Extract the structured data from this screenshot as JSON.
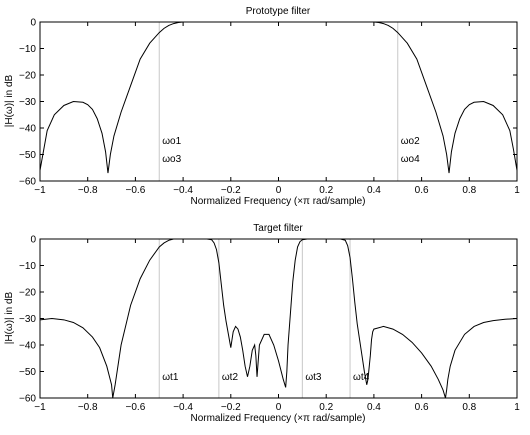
{
  "chart_data": [
    {
      "type": "line",
      "title": "Prototype filter",
      "xlabel": "Normalized Frequency  (×π rad/sample)",
      "ylabel": "|H(ω)| in dB",
      "xlim": [
        -1,
        1
      ],
      "ylim": [
        -60,
        0
      ],
      "xticks": [
        -1,
        -0.8,
        -0.6,
        -0.4,
        -0.2,
        0,
        0.2,
        0.4,
        0.6,
        0.8,
        1
      ],
      "xtick_labels": [
        "−1",
        "−0.8",
        "−0.6",
        "−0.4",
        "−0.2",
        "0",
        "0.2",
        "0.4",
        "0.6",
        "0.8",
        "1"
      ],
      "yticks": [
        0,
        -10,
        -20,
        -30,
        -40,
        -50,
        -60
      ],
      "ytick_labels": [
        "0",
        "−10",
        "−20",
        "−30",
        "−40",
        "−50",
        "−60"
      ],
      "grid": false,
      "series": [
        {
          "color": "#000000",
          "x": [
            -1.0,
            -0.97,
            -0.94,
            -0.9,
            -0.86,
            -0.82,
            -0.8,
            -0.78,
            -0.76,
            -0.74,
            -0.725,
            -0.715,
            -0.705,
            -0.69,
            -0.66,
            -0.62,
            -0.58,
            -0.54,
            -0.5,
            -0.48,
            -0.46,
            -0.44,
            -0.42,
            -0.4,
            -0.36,
            0.36,
            0.4,
            0.42,
            0.44,
            0.46,
            0.48,
            0.5,
            0.54,
            0.58,
            0.62,
            0.66,
            0.69,
            0.705,
            0.715,
            0.725,
            0.74,
            0.76,
            0.78,
            0.8,
            0.82,
            0.86,
            0.9,
            0.94,
            0.97,
            0.985,
            1.0
          ],
          "y": [
            -56,
            -41,
            -35,
            -31.5,
            -30,
            -30.3,
            -31.2,
            -33,
            -36.5,
            -42,
            -49,
            -57,
            -50,
            -43,
            -34,
            -24,
            -14,
            -8,
            -4,
            -2.4,
            -1.3,
            -0.6,
            -0.2,
            0,
            0,
            0,
            0,
            -0.2,
            -0.6,
            -1.3,
            -2.4,
            -4,
            -8,
            -14,
            -24,
            -34,
            -43,
            -50,
            -57,
            -49,
            -42,
            -36.5,
            -33,
            -31.2,
            -30.3,
            -30,
            -31.5,
            -35,
            -41,
            -48,
            -56
          ]
        }
      ],
      "markers": [
        {
          "x": -0.5,
          "labels": [
            "ωo1",
            "ωo3"
          ]
        },
        {
          "x": 0.5,
          "labels": [
            "ωo2",
            "ωo4"
          ]
        }
      ]
    },
    {
      "type": "line",
      "title": "Target filter",
      "xlabel": "Normalized Frequency  (×π rad/sample)",
      "ylabel": "|H(ω)| in dB",
      "xlim": [
        -1,
        1
      ],
      "ylim": [
        -60,
        0
      ],
      "xticks": [
        -1,
        -0.8,
        -0.6,
        -0.4,
        -0.2,
        0,
        0.2,
        0.4,
        0.6,
        0.8,
        1
      ],
      "xtick_labels": [
        "−1",
        "−0.8",
        "−0.6",
        "−0.4",
        "−0.2",
        "0",
        "0.2",
        "0.4",
        "0.6",
        "0.8",
        "1"
      ],
      "yticks": [
        0,
        -10,
        -20,
        -30,
        -40,
        -50,
        -60
      ],
      "ytick_labels": [
        "0",
        "−10",
        "−20",
        "−30",
        "−40",
        "−50",
        "−60"
      ],
      "grid": false,
      "series": [
        {
          "color": "#000000",
          "x": [
            -1.0,
            -0.95,
            -0.9,
            -0.86,
            -0.82,
            -0.78,
            -0.75,
            -0.72,
            -0.7,
            -0.695,
            -0.685,
            -0.66,
            -0.62,
            -0.58,
            -0.54,
            -0.5,
            -0.48,
            -0.46,
            -0.44,
            -0.4,
            -0.3,
            -0.28,
            -0.27,
            -0.26,
            -0.25,
            -0.24,
            -0.23,
            -0.22,
            -0.21,
            -0.2,
            -0.195,
            -0.19,
            -0.18,
            -0.17,
            -0.16,
            -0.15,
            -0.14,
            -0.13,
            -0.12,
            -0.11,
            -0.1,
            -0.095,
            -0.09,
            -0.08,
            -0.06,
            -0.04,
            -0.02,
            0.0,
            0.02,
            0.03,
            0.035,
            0.04,
            0.05,
            0.06,
            0.07,
            0.08,
            0.09,
            0.1,
            0.12,
            0.14,
            0.16,
            0.2,
            0.26,
            0.28,
            0.29,
            0.3,
            0.31,
            0.32,
            0.33,
            0.34,
            0.35,
            0.36,
            0.37,
            0.375,
            0.385,
            0.39,
            0.395,
            0.4,
            0.44,
            0.48,
            0.52,
            0.56,
            0.6,
            0.64,
            0.67,
            0.69,
            0.7,
            0.705,
            0.71,
            0.72,
            0.74,
            0.78,
            0.82,
            0.86,
            0.9,
            0.95,
            1.0
          ],
          "y": [
            -30.5,
            -30,
            -30.5,
            -31.5,
            -33.5,
            -37,
            -41,
            -48,
            -55,
            -60,
            -55,
            -40,
            -25,
            -15,
            -8,
            -3,
            -1.5,
            -0.5,
            0,
            0,
            0,
            -0.3,
            -1.5,
            -4,
            -9,
            -17,
            -25,
            -31,
            -36,
            -41,
            -38,
            -35,
            -33,
            -34,
            -37,
            -42,
            -48,
            -52,
            -48,
            -42,
            -40,
            -44,
            -52,
            -40,
            -36,
            -36,
            -40,
            -46,
            -53,
            -56,
            -50,
            -40,
            -28,
            -16,
            -8,
            -3,
            -1,
            -0.3,
            0,
            0,
            0,
            0,
            0,
            -0.5,
            -2.5,
            -7,
            -15,
            -24,
            -32,
            -38,
            -44,
            -50,
            -55,
            -53,
            -44,
            -38,
            -35,
            -34,
            -33,
            -34,
            -36,
            -39,
            -43,
            -48,
            -53,
            -57,
            -60,
            -57,
            -53,
            -48,
            -42,
            -36,
            -33,
            -31.5,
            -30.8,
            -30.3,
            -30
          ]
        }
      ],
      "markers": [
        {
          "x": -0.5,
          "labels": [
            "ωt1"
          ]
        },
        {
          "x": -0.25,
          "labels": [
            "ωt2"
          ]
        },
        {
          "x": 0.1,
          "labels": [
            "ωt3"
          ]
        },
        {
          "x": 0.3,
          "labels": [
            "ωt4"
          ]
        }
      ]
    }
  ]
}
